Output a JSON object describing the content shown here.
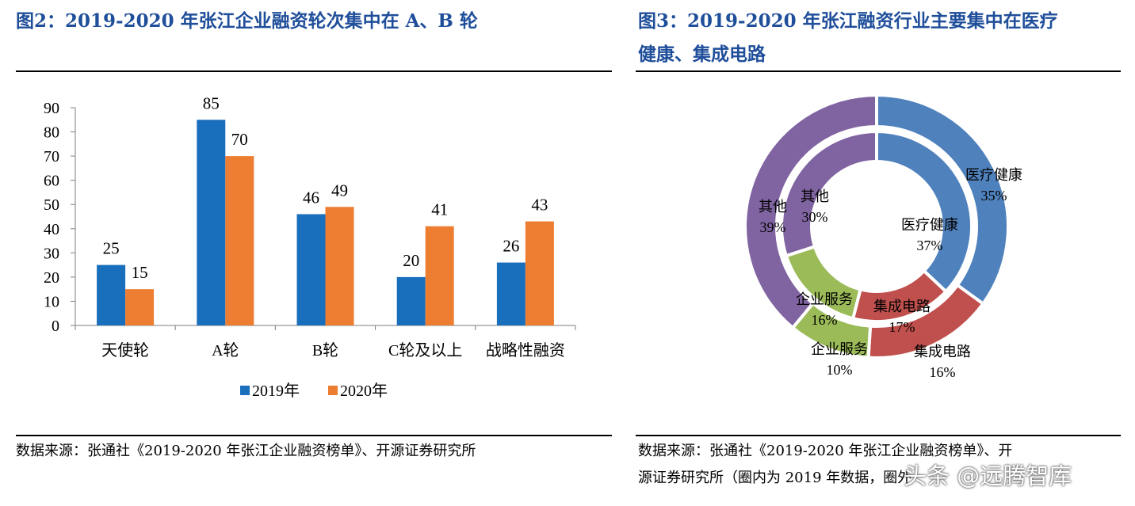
{
  "left_figure": {
    "title": "图2：2019-2020 年张江企业融资轮次集中在 A、B 轮",
    "source": "数据来源：张通社《2019-2020 年张江企业融资榜单》、开源证券研究所"
  },
  "right_figure": {
    "title_line1": "图3：2019-2020  年张江融资行业主要集中在医疗",
    "title_line2": "健康、集成电路",
    "source_line1": "数据来源：张通社《2019-2020 年张江企业融资榜单》、开",
    "source_line2": "源证券研究所（圈内为 2019 年数据，圈外"
  },
  "watermark": "头条 @远腾智库",
  "colors": {
    "title": "#1f4e9a",
    "series_2019": "#1a6fbd",
    "series_2020": "#ed7d31",
    "medical": "#4f81bd",
    "ic": "#c0504d",
    "enterprise": "#9bbb59",
    "other": "#8064a2"
  },
  "chart_data": [
    {
      "type": "bar",
      "categories": [
        "天使轮",
        "A轮",
        "B轮",
        "C轮及以上",
        "战略性融资"
      ],
      "series": [
        {
          "name": "2019年",
          "values": [
            25,
            85,
            46,
            20,
            26
          ]
        },
        {
          "name": "2020年",
          "values": [
            15,
            70,
            49,
            41,
            43
          ]
        }
      ],
      "yticks": [
        "0",
        "10",
        "20",
        "30",
        "40",
        "50",
        "60",
        "70",
        "80",
        "90"
      ],
      "ylim": [
        0,
        90
      ],
      "legend": "bottom-center",
      "grid": false
    },
    {
      "type": "pie",
      "variant": "double-donut",
      "inner": {
        "name": "2019",
        "slices": [
          {
            "label": "医疗健康",
            "value": 37,
            "text": "37%"
          },
          {
            "label": "集成电路",
            "value": 17,
            "text": "17%"
          },
          {
            "label": "企业服务",
            "value": 16,
            "text": "16%"
          },
          {
            "label": "其他",
            "value": 30,
            "text": "30%"
          }
        ]
      },
      "outer": {
        "name": "2020",
        "slices": [
          {
            "label": "医疗健康",
            "value": 35,
            "text": "35%"
          },
          {
            "label": "集成电路",
            "value": 16,
            "text": "16%"
          },
          {
            "label": "企业服务",
            "value": 10,
            "text": "10%"
          },
          {
            "label": "其他",
            "value": 39,
            "text": "39%"
          }
        ]
      }
    }
  ]
}
